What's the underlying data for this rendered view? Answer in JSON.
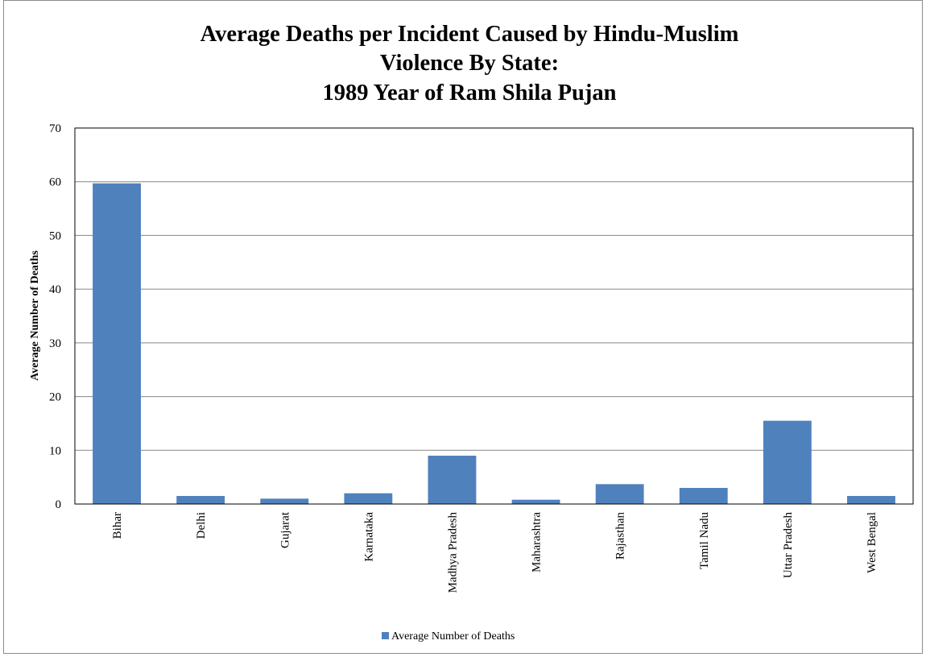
{
  "chart_data": {
    "type": "bar",
    "title_lines": [
      "Average Deaths per Incident Caused by Hindu-Muslim",
      "Violence By State:",
      "1989 Year of Ram Shila Pujan"
    ],
    "xlabel": "",
    "ylabel": "Average Number of Deaths",
    "ylim": [
      0,
      70
    ],
    "yticks": [
      0,
      10,
      20,
      30,
      40,
      50,
      60,
      70
    ],
    "grid": true,
    "legend_position": "bottom",
    "categories": [
      "Bihar",
      "Delhi",
      "Gujarat",
      "Karnataka",
      "Madhya Pradesh",
      "Maharashtra",
      "Rajasthan",
      "Tamil Nadu",
      "Uttar Pradesh",
      "West Bengal"
    ],
    "series": [
      {
        "name": "Average Number of Deaths",
        "color": "#4f81bd",
        "values": [
          59.7,
          1.5,
          1.0,
          2.0,
          9.0,
          0.8,
          3.7,
          3.0,
          15.5,
          1.5
        ]
      }
    ]
  }
}
